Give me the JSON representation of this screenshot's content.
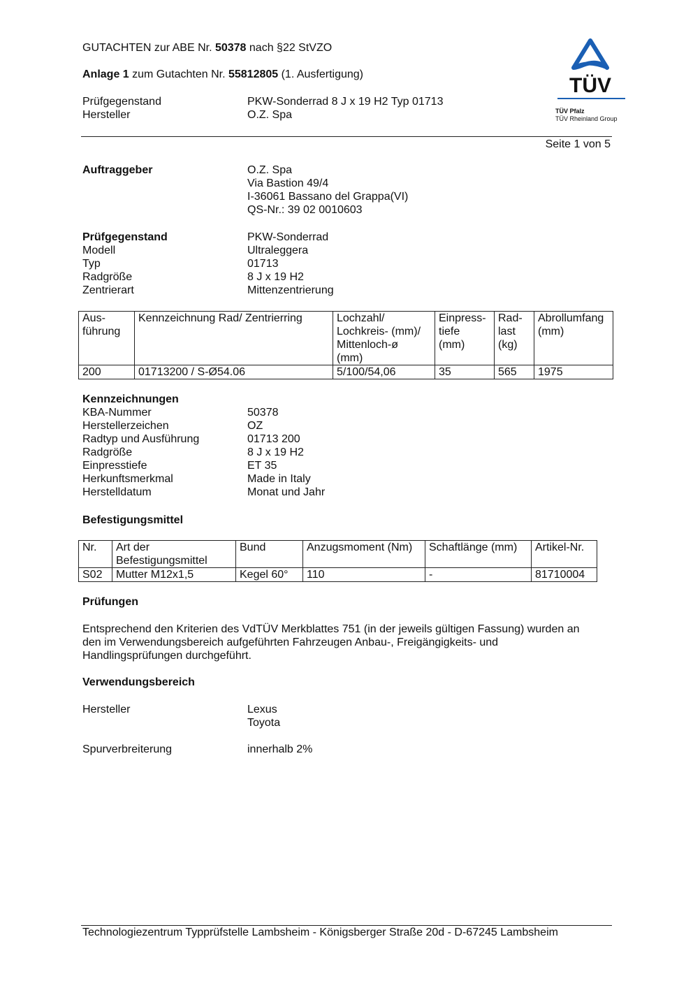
{
  "header": {
    "line1_pre": "GUTACHTEN zur ABE Nr. ",
    "line1_num": "50378",
    "line1_post": " nach §22 StVZO",
    "line2_pre": "Anlage 1",
    "line2_mid": " zum Gutachten Nr. ",
    "line2_num": "55812805",
    "line2_post": " (1. Ausfertigung)",
    "rows": [
      {
        "label": "Prüfgegenstand",
        "value": "PKW-Sonderrad 8 J x 19 H2 Typ 01713"
      },
      {
        "label": "Hersteller",
        "value": "O.Z. Spa"
      }
    ],
    "page": "Seite 1 von 5"
  },
  "logo": {
    "text": "TÜV",
    "sub1": "TÜV Pfalz",
    "sub2": "TÜV Rheinland Group",
    "color": "#1a5fb4"
  },
  "auftraggeber": {
    "label": "Auftraggeber",
    "lines": [
      "O.Z. Spa",
      "Via Bastion 49/4",
      "I-36061 Bassano del Grappa(VI)",
      "QS-Nr.: 39 02 0010603"
    ]
  },
  "pruefgegenstand": {
    "label": "Prüfgegenstand",
    "value": "PKW-Sonderrad",
    "rows": [
      {
        "label": "Modell",
        "value": "Ultraleggera"
      },
      {
        "label": "Typ",
        "value": "01713"
      },
      {
        "label": "Radgröße",
        "value": "8 J x 19 H2"
      },
      {
        "label": "Zentrierart",
        "value": "Mittenzentrierung"
      }
    ]
  },
  "table1": {
    "headers": [
      "Aus-\nführung",
      "Kennzeichnung Rad/ Zentrierring",
      "Lochzahl/\nLochkreis- (mm)/\nMittenloch-ø\n(mm)",
      "Einpress-\ntiefe\n(mm)",
      "Rad-\nlast\n(kg)",
      "Abrollumfang\n(mm)"
    ],
    "rows": [
      [
        "200",
        "01713200 / S-Ø54.06",
        "5/100/54,06",
        "35",
        "565",
        "1975"
      ]
    ]
  },
  "kennzeichnungen": {
    "title": "Kennzeichnungen",
    "rows": [
      {
        "label": "KBA-Nummer",
        "value": "50378"
      },
      {
        "label": "Herstellerzeichen",
        "value": "OZ"
      },
      {
        "label": "Radtyp und Ausführung",
        "value": "01713 200"
      },
      {
        "label": "Radgröße",
        "value": "8 J x 19 H2"
      },
      {
        "label": "Einpresstiefe",
        "value": "ET 35"
      },
      {
        "label": "Herkunftsmerkmal",
        "value": "Made in Italy"
      },
      {
        "label": "Herstelldatum",
        "value": "Monat und Jahr"
      }
    ]
  },
  "befestigung": {
    "title": "Befestigungsmittel"
  },
  "table2": {
    "headers": [
      "Nr.",
      "Art der\nBefestigungsmittel",
      "Bund",
      "Anzugsmoment (Nm)",
      "Schaftlänge (mm)",
      "Artikel-Nr."
    ],
    "rows": [
      [
        "S02",
        "Mutter M12x1,5",
        "Kegel 60°",
        "110",
        "-",
        "81710004"
      ]
    ]
  },
  "pruefungen": {
    "title": "Prüfungen",
    "lines": [
      "Entsprechend den Kriterien des VdTÜV Merkblattes 751 (in der jeweils gültigen Fassung) wurden an",
      "den im Verwendungsbereich aufgeführten Fahrzeugen Anbau-, Freigängigkeits- und",
      "Handlingsprüfungen durchgeführt."
    ]
  },
  "verwendung": {
    "title": "Verwendungsbereich",
    "hersteller_label": "Hersteller",
    "hersteller": [
      "Lexus",
      "Toyota"
    ],
    "spur_label": "Spurverbreiterung",
    "spur_value": "innerhalb 2%"
  },
  "footer": "Technologiezentrum Typprüfstelle Lambsheim - Königsberger Straße 20d - D-67245 Lambsheim"
}
